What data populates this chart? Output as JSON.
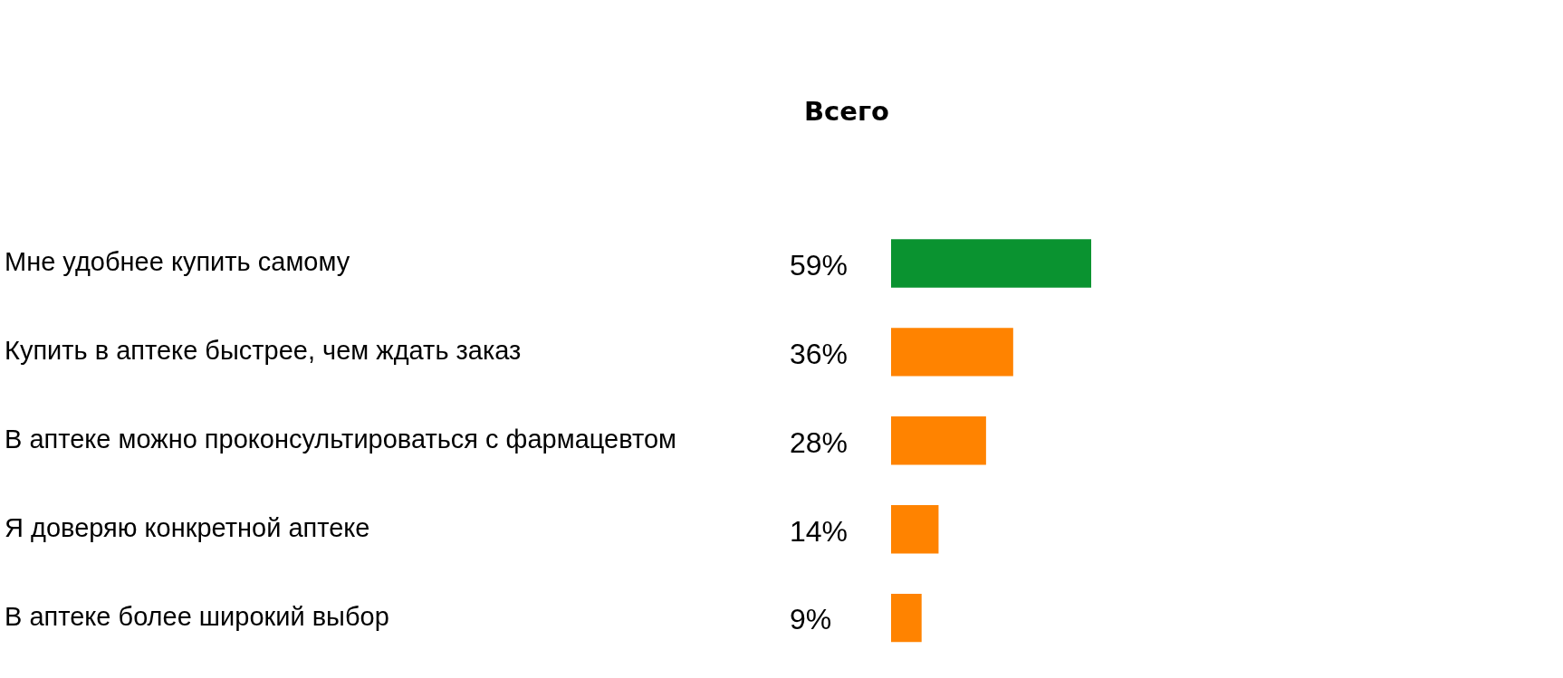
{
  "chart_data": {
    "type": "bar",
    "orientation": "horizontal",
    "title": "Всего",
    "categories": [
      "Мне удобнее купить самому",
      "Купить в аптеке быстрее, чем ждать заказ",
      "В аптеке можно проконсультироваться с фармацевтом",
      "Я доверяю конкретной аптеке",
      "В аптеке более широкий выбор"
    ],
    "values": [
      59,
      36,
      28,
      14,
      9
    ],
    "colors": [
      "#0a9330",
      "#ff8300",
      "#ff8300",
      "#ff8300",
      "#ff8300"
    ],
    "value_labels": [
      "59%",
      "36%",
      "28%",
      "14%",
      "9%"
    ]
  }
}
